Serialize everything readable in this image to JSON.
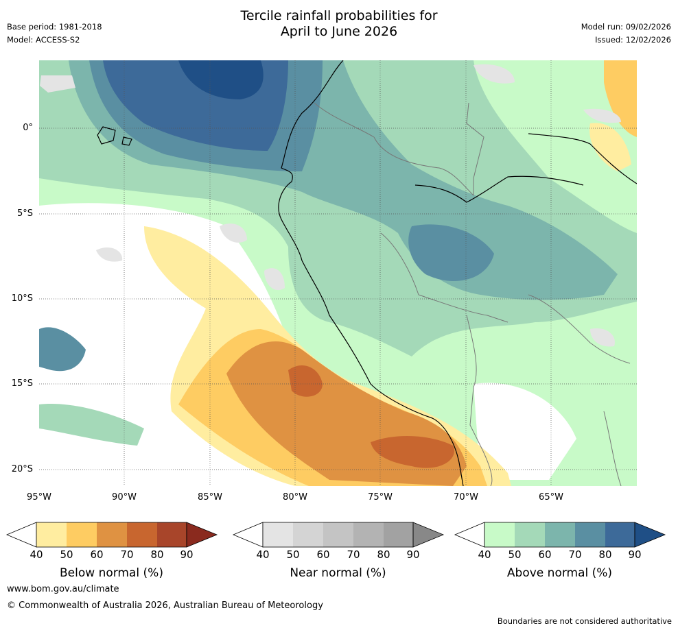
{
  "header": {
    "title_line1": "Tercile rainfall probabilities for",
    "title_line2": "April to June 2026",
    "base_period": "Base period: 1981-2018",
    "model": "Model: ACCESS-S2",
    "model_run": "Model run: 09/02/2026",
    "issued": "Issued: 12/02/2026"
  },
  "map": {
    "y_axis_labels": [
      "0°",
      "5°S",
      "10°S",
      "15°S",
      "20°S"
    ],
    "x_axis_labels": [
      "95°W",
      "90°W",
      "85°W",
      "80°W",
      "75°W",
      "70°W",
      "65°W"
    ]
  },
  "legend": {
    "ticks": [
      "40",
      "50",
      "60",
      "70",
      "80",
      "90"
    ],
    "below": {
      "title": "Below normal (%)",
      "colors": [
        "#ffffff",
        "#ffeda0",
        "#fecc62",
        "#df9242",
        "#c8662f",
        "#a8452a",
        "#8a2a1e"
      ]
    },
    "near": {
      "title": "Near normal (%)",
      "colors": [
        "#ffffff",
        "#e4e4e4",
        "#d4d4d4",
        "#c4c4c4",
        "#b3b3b3",
        "#a2a2a2",
        "#888888"
      ]
    },
    "above": {
      "title": "Above normal (%)",
      "colors": [
        "#ffffff",
        "#c8fac8",
        "#a4d9b8",
        "#7cb5ac",
        "#5a8fa2",
        "#3d6a99",
        "#1f4f86"
      ]
    }
  },
  "footer": {
    "url": "www.bom.gov.au/climate",
    "copyright": "© Commonwealth of Australia 2026, Australian Bureau of Meteorology",
    "note": "Boundaries are not considered authoritative"
  }
}
